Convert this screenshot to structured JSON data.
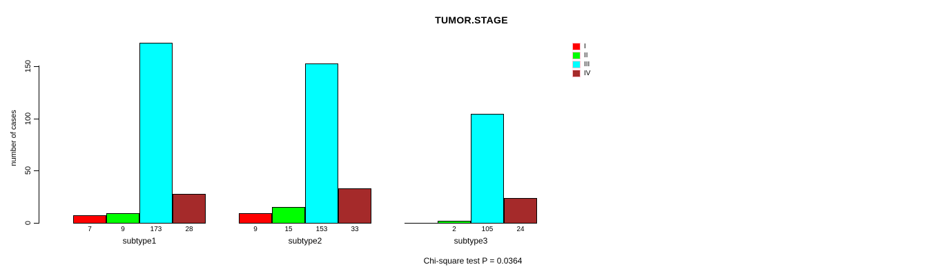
{
  "chart_data": {
    "type": "bar",
    "title": "TUMOR.STAGE",
    "xlabel": "",
    "ylabel": "number of cases",
    "categories": [
      "subtype1",
      "subtype2",
      "subtype3"
    ],
    "series": [
      {
        "name": "I",
        "color": "#ff0000",
        "values": [
          7,
          9,
          0
        ]
      },
      {
        "name": "II",
        "color": "#00ff00",
        "values": [
          9,
          15,
          2
        ]
      },
      {
        "name": "III",
        "color": "#00ffff",
        "values": [
          173,
          153,
          105
        ]
      },
      {
        "name": "IV",
        "color": "#a52a2a",
        "values": [
          28,
          33,
          24
        ]
      }
    ],
    "bar_value_labels": [
      [
        "7",
        "9",
        "173",
        "28"
      ],
      [
        "9",
        "15",
        "153",
        "33"
      ],
      [
        "",
        "2",
        "105",
        "24"
      ]
    ],
    "yticks": [
      0,
      50,
      100,
      150
    ],
    "ylim": [
      0,
      175
    ],
    "grid": false,
    "legend_position": "top-right",
    "legend_entries": [
      "I",
      "II",
      "III",
      "IV"
    ],
    "annotation": "Chi-square test P = 0.0364"
  }
}
